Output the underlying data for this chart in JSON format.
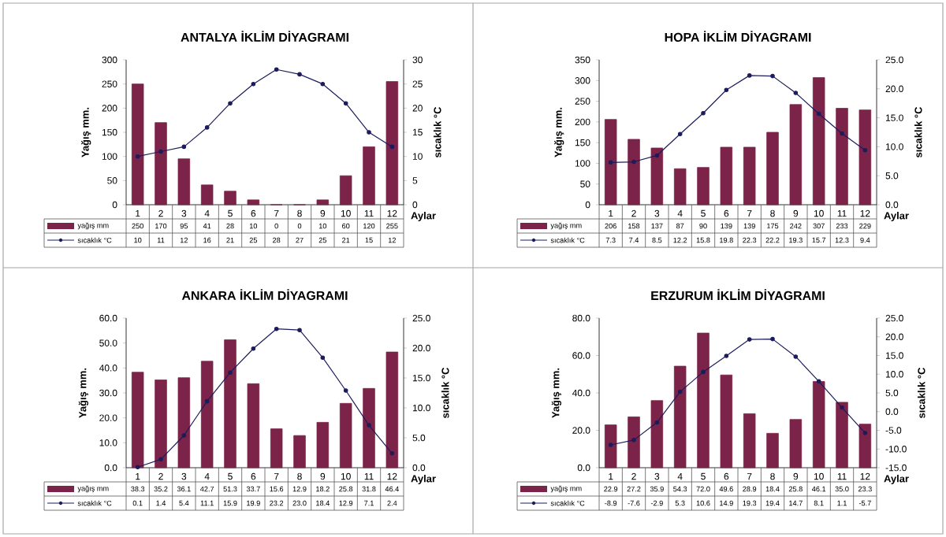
{
  "chart_data": [
    {
      "type": "bar",
      "title": "ANTALYA İKLİM DİYAGRAMI",
      "xlabel": "Aylar",
      "ylabel": "Yağış mm.",
      "y2label": "sıcaklık °C",
      "categories": [
        "1",
        "2",
        "3",
        "4",
        "5",
        "6",
        "7",
        "8",
        "9",
        "10",
        "11",
        "12"
      ],
      "legend": "bottom",
      "marker": "circle",
      "series": [
        {
          "name": "yağış mm",
          "color": "#7b2348",
          "values": [
            250,
            170,
            95,
            41,
            28,
            10,
            0,
            0,
            10,
            60,
            120,
            255
          ],
          "value_labels": [
            "250",
            "170",
            "95",
            "41",
            "28",
            "10",
            "0",
            "0",
            "10",
            "60",
            "120",
            "255"
          ]
        },
        {
          "name": "sıcaklık °C",
          "type": "line",
          "axis": "y2",
          "color": "#1c1c5c",
          "values": [
            10,
            11,
            12,
            16,
            21,
            25,
            28,
            27,
            25,
            21,
            15,
            12
          ],
          "value_labels": [
            "10",
            "11",
            "12",
            "16",
            "21",
            "25",
            "28",
            "27",
            "25",
            "21",
            "15",
            "12"
          ]
        }
      ],
      "ylim": [
        0,
        300
      ],
      "yticks": [
        0,
        50,
        100,
        150,
        200,
        250,
        300
      ],
      "y2lim": [
        0,
        30
      ],
      "y2ticks": [
        0,
        5,
        10,
        15,
        20,
        25,
        30
      ]
    },
    {
      "type": "bar",
      "title": "HOPA İKLİM DİYAGRAMI",
      "xlabel": "Aylar",
      "ylabel": "Yağış mm.",
      "y2label": "sıcaklık °C",
      "categories": [
        "1",
        "2",
        "3",
        "4",
        "5",
        "6",
        "7",
        "8",
        "9",
        "10",
        "11",
        "12"
      ],
      "legend": "bottom",
      "marker": "circle",
      "series": [
        {
          "name": "yağış mm",
          "color": "#7b2348",
          "values": [
            206,
            158,
            137,
            87,
            90,
            139,
            139,
            175,
            242,
            307,
            233,
            229
          ],
          "value_labels": [
            "206",
            "158",
            "137",
            "87",
            "90",
            "139",
            "139",
            "175",
            "242",
            "307",
            "233",
            "229"
          ]
        },
        {
          "name": "sıcaklık °C",
          "type": "line",
          "axis": "y2",
          "color": "#1c1c5c",
          "values": [
            7.3,
            7.4,
            8.5,
            12.2,
            15.8,
            19.8,
            22.3,
            22.2,
            19.3,
            15.7,
            12.3,
            9.4
          ],
          "value_labels": [
            "7.3",
            "7.4",
            "8.5",
            "12.2",
            "15.8",
            "19.8",
            "22.3",
            "22.2",
            "19.3",
            "15.7",
            "12.3",
            "9.4"
          ]
        }
      ],
      "ylim": [
        0,
        350
      ],
      "yticks": [
        0,
        50,
        100,
        150,
        200,
        250,
        300,
        350
      ],
      "y2lim": [
        0,
        25
      ],
      "y2ticks": [
        {
          "value": 0,
          "label": "0.0"
        },
        {
          "value": 5,
          "label": "5.0"
        },
        {
          "value": 10,
          "label": "10.0"
        },
        {
          "value": 15,
          "label": "15.0"
        },
        {
          "value": 20,
          "label": "20.0"
        },
        {
          "value": 25,
          "label": "25.0"
        }
      ]
    },
    {
      "type": "bar",
      "title": "ANKARA İKLİM DİYAGRAMI",
      "xlabel": "Aylar",
      "ylabel": "Yağış mm.",
      "y2label": "sıcaklık °C",
      "categories": [
        "1",
        "2",
        "3",
        "4",
        "5",
        "6",
        "7",
        "8",
        "9",
        "10",
        "11",
        "12"
      ],
      "legend": "bottom",
      "marker": "circle",
      "series": [
        {
          "name": "yağış mm",
          "color": "#7b2348",
          "values": [
            38.3,
            35.2,
            36.1,
            42.7,
            51.3,
            33.7,
            15.6,
            12.9,
            18.2,
            25.8,
            31.8,
            46.4
          ],
          "value_labels": [
            "38.3",
            "35.2",
            "36.1",
            "42.7",
            "51.3",
            "33.7",
            "15.6",
            "12.9",
            "18.2",
            "25.8",
            "31.8",
            "46.4"
          ]
        },
        {
          "name": "sıcaklık °C",
          "type": "line",
          "axis": "y2",
          "color": "#1c1c5c",
          "values": [
            0.1,
            1.4,
            5.4,
            11.1,
            15.9,
            19.9,
            23.2,
            23.0,
            18.4,
            12.9,
            7.1,
            2.4
          ],
          "value_labels": [
            "0.1",
            "1.4",
            "5.4",
            "11.1",
            "15.9",
            "19.9",
            "23.2",
            "23.0",
            "18.4",
            "12.9",
            "7.1",
            "2.4"
          ]
        }
      ],
      "ylim": [
        0,
        60
      ],
      "yticks": [
        {
          "value": 0,
          "label": "0.0"
        },
        {
          "value": 10,
          "label": "10.0"
        },
        {
          "value": 20,
          "label": "20.0"
        },
        {
          "value": 30,
          "label": "30.0"
        },
        {
          "value": 40,
          "label": "40.0"
        },
        {
          "value": 50,
          "label": "50.0"
        },
        {
          "value": 60,
          "label": "60.0"
        }
      ],
      "y2lim": [
        0,
        25
      ],
      "y2ticks": [
        {
          "value": 0,
          "label": "0.0"
        },
        {
          "value": 5,
          "label": "5.0"
        },
        {
          "value": 10,
          "label": "10.0"
        },
        {
          "value": 15,
          "label": "15.0"
        },
        {
          "value": 20,
          "label": "20.0"
        },
        {
          "value": 25,
          "label": "25.0"
        }
      ]
    },
    {
      "type": "bar",
      "title": "ERZURUM İKLİM DİYAGRAMI",
      "xlabel": "Aylar",
      "ylabel": "Yağış mm.",
      "y2label": "sıcaklık °C",
      "categories": [
        "1",
        "2",
        "3",
        "4",
        "5",
        "6",
        "7",
        "8",
        "9",
        "10",
        "11",
        "12"
      ],
      "legend": "bottom",
      "marker": "circle",
      "series": [
        {
          "name": "yağış mm",
          "color": "#7b2348",
          "values": [
            22.9,
            27.2,
            35.9,
            54.3,
            72.0,
            49.6,
            28.9,
            18.4,
            25.8,
            46.1,
            35.0,
            23.3
          ],
          "value_labels": [
            "22.9",
            "27.2",
            "35.9",
            "54.3",
            "72.0",
            "49.6",
            "28.9",
            "18.4",
            "25.8",
            "46.1",
            "35.0",
            "23.3"
          ]
        },
        {
          "name": "sıcaklık °C",
          "type": "line",
          "axis": "y2",
          "color": "#1c1c5c",
          "values": [
            -8.9,
            -7.6,
            -2.9,
            5.3,
            10.6,
            14.9,
            19.3,
            19.4,
            14.7,
            8.1,
            1.1,
            -5.7
          ],
          "value_labels": [
            "-8.9",
            "-7.6",
            "-2.9",
            "5.3",
            "10.6",
            "14.9",
            "19.3",
            "19.4",
            "14.7",
            "8.1",
            "1.1",
            "-5.7"
          ]
        }
      ],
      "ylim": [
        0,
        80
      ],
      "yticks": [
        {
          "value": 0,
          "label": "0.0"
        },
        {
          "value": 20,
          "label": "20.0"
        },
        {
          "value": 40,
          "label": "40.0"
        },
        {
          "value": 60,
          "label": "60.0"
        },
        {
          "value": 80,
          "label": "80.0"
        }
      ],
      "y2lim": [
        -15,
        25
      ],
      "y2ticks": [
        {
          "value": -15,
          "label": "-15.0"
        },
        {
          "value": -10,
          "label": "-10.0"
        },
        {
          "value": -5,
          "label": "-5.0"
        },
        {
          "value": 0,
          "label": "0.0"
        },
        {
          "value": 5,
          "label": "5.0"
        },
        {
          "value": 10,
          "label": "10.0"
        },
        {
          "value": 15,
          "label": "15.0"
        },
        {
          "value": 20,
          "label": "20.0"
        },
        {
          "value": 25,
          "label": "25.0"
        }
      ]
    }
  ]
}
